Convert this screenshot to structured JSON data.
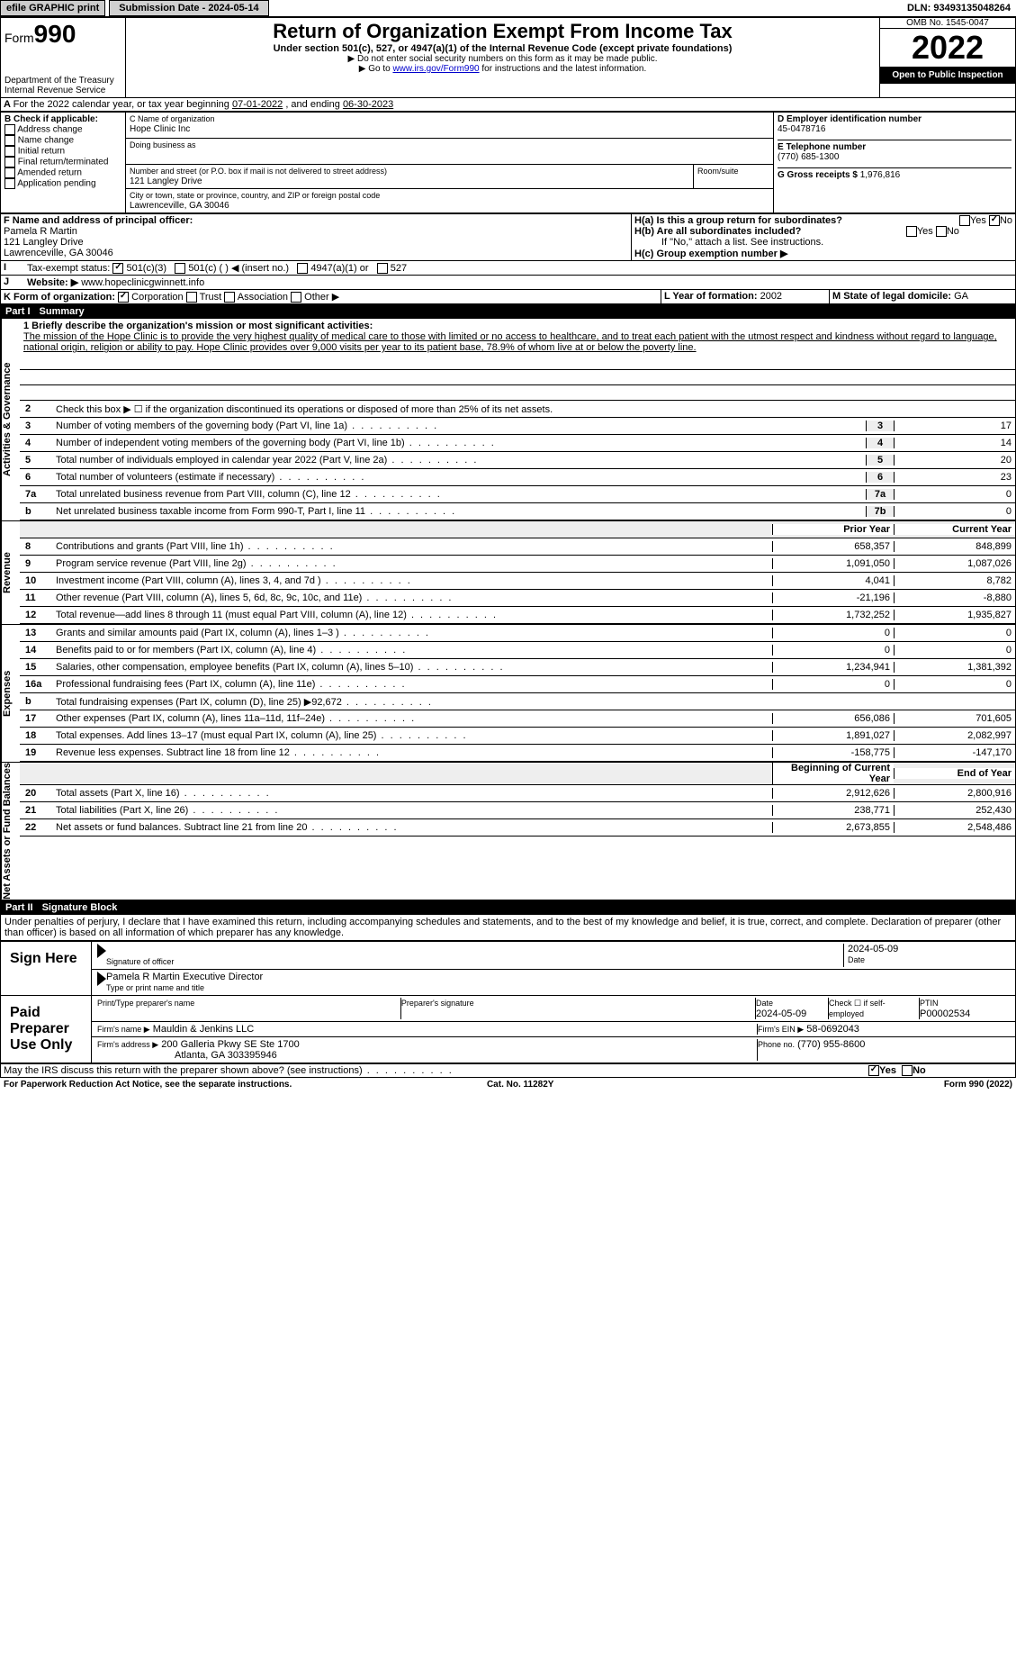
{
  "topbar": {
    "efile": "efile GRAPHIC print",
    "submission": "Submission Date - 2024-05-14",
    "dln": "DLN: 93493135048264"
  },
  "header": {
    "form": "Form",
    "form_num": "990",
    "dept": "Department of the Treasury",
    "irs": "Internal Revenue Service",
    "title": "Return of Organization Exempt From Income Tax",
    "sub1": "Under section 501(c), 527, or 4947(a)(1) of the Internal Revenue Code (except private foundations)",
    "sub2": "▶ Do not enter social security numbers on this form as it may be made public.",
    "sub3": "▶ Go to ",
    "sub3_link": "www.irs.gov/Form990",
    "sub3_end": " for instructions and the latest information.",
    "omb": "OMB No. 1545-0047",
    "year": "2022",
    "opi": "Open to Public Inspection"
  },
  "periodA": {
    "text": "For the 2022 calendar year, or tax year beginning ",
    "begin": "07-01-2022",
    "mid": " , and ending ",
    "end": "06-30-2023"
  },
  "B": {
    "label": "B Check if applicable:",
    "items": [
      "Address change",
      "Name change",
      "Initial return",
      "Final return/terminated",
      "Amended return",
      "Application pending"
    ]
  },
  "C": {
    "name_label": "C Name of organization",
    "name": "Hope Clinic Inc",
    "dba_label": "Doing business as",
    "dba": "",
    "street_label": "Number and street (or P.O. box if mail is not delivered to street address)",
    "street": "121 Langley Drive",
    "room_label": "Room/suite",
    "city_label": "City or town, state or province, country, and ZIP or foreign postal code",
    "city": "Lawrenceville, GA  30046"
  },
  "D": {
    "label": "D Employer identification number",
    "value": "45-0478716"
  },
  "E": {
    "label": "E Telephone number",
    "value": "(770) 685-1300"
  },
  "G": {
    "label": "G Gross receipts $",
    "value": "1,976,816"
  },
  "F": {
    "label": "F  Name and address of principal officer:",
    "name": "Pamela R Martin",
    "street": "121 Langley Drive",
    "city": "Lawrenceville, GA  30046"
  },
  "H": {
    "a_label": "H(a)  Is this a group return for subordinates?",
    "b_label": "H(b)  Are all subordinates included?",
    "b_note": "If \"No,\" attach a list. See instructions.",
    "c_label": "H(c)  Group exemption number ▶"
  },
  "I": {
    "label": "Tax-exempt status:",
    "opts": [
      "501(c)(3)",
      "501(c) (   ) ◀ (insert no.)",
      "4947(a)(1) or",
      "527"
    ]
  },
  "J": {
    "label": "Website: ▶",
    "value": "www.hopeclinicgwinnett.info"
  },
  "K": {
    "label": "K Form of organization:",
    "opts": [
      "Corporation",
      "Trust",
      "Association",
      "Other ▶"
    ]
  },
  "L": {
    "label": "L Year of formation:",
    "value": "2002"
  },
  "M": {
    "label": "M State of legal domicile:",
    "value": "GA"
  },
  "part1": {
    "label": "Part I",
    "title": "Summary",
    "q1_label": "1 Briefly describe the organization's mission or most significant activities:",
    "mission": "The mission of the Hope Clinic is to provide the very highest quality of medical care to those with limited or no access to healthcare, and to treat each patient with the utmost respect and kindness without regard to language, national origin, religion or ability to pay. Hope Clinic provides over 9,000 visits per year to its patient base, 78.9% of whom live at or below the poverty line.",
    "q2": "Check this box ▶ ☐  if the organization discontinued its operations or disposed of more than 25% of its net assets.",
    "vlabel_gov": "Activities & Governance",
    "vlabel_rev": "Revenue",
    "vlabel_exp": "Expenses",
    "vlabel_net": "Net Assets or Fund Balances",
    "col_prior": "Prior Year",
    "col_current": "Current Year",
    "col_begin": "Beginning of Current Year",
    "col_end": "End of Year",
    "lines_gov": [
      {
        "n": "3",
        "d": "Number of voting members of the governing body (Part VI, line 1a)",
        "box": "3",
        "v": "17"
      },
      {
        "n": "4",
        "d": "Number of independent voting members of the governing body (Part VI, line 1b)",
        "box": "4",
        "v": "14"
      },
      {
        "n": "5",
        "d": "Total number of individuals employed in calendar year 2022 (Part V, line 2a)",
        "box": "5",
        "v": "20"
      },
      {
        "n": "6",
        "d": "Total number of volunteers (estimate if necessary)",
        "box": "6",
        "v": "23"
      },
      {
        "n": "7a",
        "d": "Total unrelated business revenue from Part VIII, column (C), line 12",
        "box": "7a",
        "v": "0"
      },
      {
        "n": "b",
        "d": "Net unrelated business taxable income from Form 990-T, Part I, line 11",
        "box": "7b",
        "v": "0"
      }
    ],
    "lines_rev": [
      {
        "n": "8",
        "d": "Contributions and grants (Part VIII, line 1h)",
        "p": "658,357",
        "c": "848,899"
      },
      {
        "n": "9",
        "d": "Program service revenue (Part VIII, line 2g)",
        "p": "1,091,050",
        "c": "1,087,026"
      },
      {
        "n": "10",
        "d": "Investment income (Part VIII, column (A), lines 3, 4, and 7d )",
        "p": "4,041",
        "c": "8,782"
      },
      {
        "n": "11",
        "d": "Other revenue (Part VIII, column (A), lines 5, 6d, 8c, 9c, 10c, and 11e)",
        "p": "-21,196",
        "c": "-8,880"
      },
      {
        "n": "12",
        "d": "Total revenue—add lines 8 through 11 (must equal Part VIII, column (A), line 12)",
        "p": "1,732,252",
        "c": "1,935,827"
      }
    ],
    "lines_exp": [
      {
        "n": "13",
        "d": "Grants and similar amounts paid (Part IX, column (A), lines 1–3 )",
        "p": "0",
        "c": "0"
      },
      {
        "n": "14",
        "d": "Benefits paid to or for members (Part IX, column (A), line 4)",
        "p": "0",
        "c": "0"
      },
      {
        "n": "15",
        "d": "Salaries, other compensation, employee benefits (Part IX, column (A), lines 5–10)",
        "p": "1,234,941",
        "c": "1,381,392"
      },
      {
        "n": "16a",
        "d": "Professional fundraising fees (Part IX, column (A), line 11e)",
        "p": "0",
        "c": "0"
      },
      {
        "n": "b",
        "d": "Total fundraising expenses (Part IX, column (D), line 25) ▶92,672",
        "p": "",
        "c": ""
      },
      {
        "n": "17",
        "d": "Other expenses (Part IX, column (A), lines 11a–11d, 11f–24e)",
        "p": "656,086",
        "c": "701,605"
      },
      {
        "n": "18",
        "d": "Total expenses. Add lines 13–17 (must equal Part IX, column (A), line 25)",
        "p": "1,891,027",
        "c": "2,082,997"
      },
      {
        "n": "19",
        "d": "Revenue less expenses. Subtract line 18 from line 12",
        "p": "-158,775",
        "c": "-147,170"
      }
    ],
    "lines_net": [
      {
        "n": "20",
        "d": "Total assets (Part X, line 16)",
        "p": "2,912,626",
        "c": "2,800,916"
      },
      {
        "n": "21",
        "d": "Total liabilities (Part X, line 26)",
        "p": "238,771",
        "c": "252,430"
      },
      {
        "n": "22",
        "d": "Net assets or fund balances. Subtract line 21 from line 20",
        "p": "2,673,855",
        "c": "2,548,486"
      }
    ]
  },
  "part2": {
    "label": "Part II",
    "title": "Signature Block",
    "decl": "Under penalties of perjury, I declare that I have examined this return, including accompanying schedules and statements, and to the best of my knowledge and belief, it is true, correct, and complete. Declaration of preparer (other than officer) is based on all information of which preparer has any knowledge."
  },
  "sign": {
    "label": "Sign Here",
    "sig_label": "Signature of officer",
    "date": "2024-05-09",
    "date_label": "Date",
    "name": "Pamela R Martin  Executive Director",
    "name_label": "Type or print name and title"
  },
  "paid": {
    "label": "Paid Preparer Use Only",
    "pt_name_label": "Print/Type preparer's name",
    "pt_sig_label": "Preparer's signature",
    "pt_date": "2024-05-09",
    "check_label": "Check ☐ if self-employed",
    "ptin_label": "PTIN",
    "ptin": "P00002534",
    "firm_label": "Firm's name   ▶",
    "firm": "Mauldin & Jenkins LLC",
    "ein_label": "Firm's EIN ▶",
    "ein": "58-0692043",
    "addr_label": "Firm's address ▶",
    "addr1": "200 Galleria Pkwy SE Ste 1700",
    "addr2": "Atlanta, GA  303395946",
    "phone_label": "Phone no.",
    "phone": "(770) 955-8600"
  },
  "discuss": {
    "text": "May the IRS discuss this return with the preparer shown above? (see instructions)",
    "yes": "Yes",
    "no": "No"
  },
  "footer": {
    "left": "For Paperwork Reduction Act Notice, see the separate instructions.",
    "mid": "Cat. No. 11282Y",
    "right": "Form 990 (2022)"
  }
}
